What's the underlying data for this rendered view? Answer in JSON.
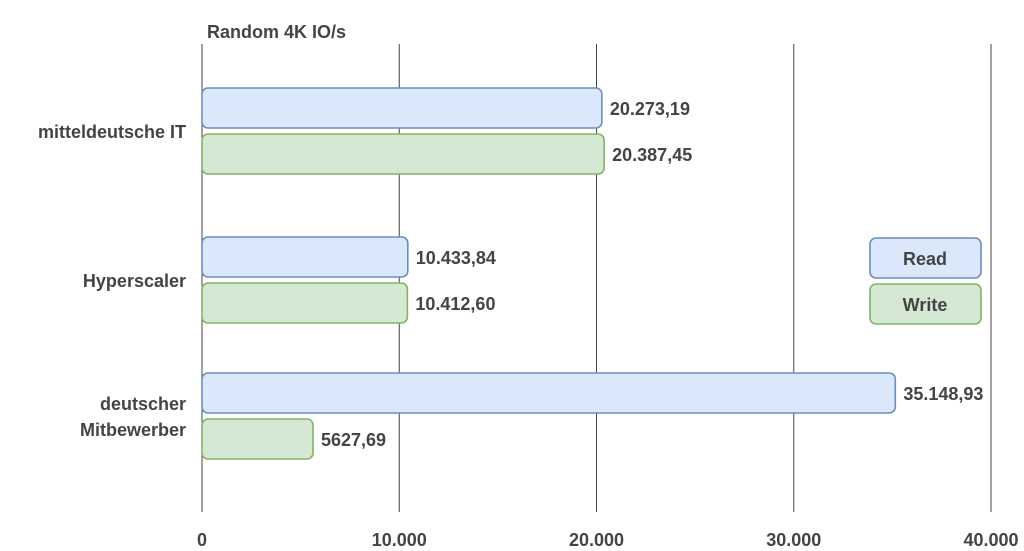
{
  "chart_data": {
    "type": "bar",
    "orientation": "horizontal",
    "title": "Random 4K IO/s",
    "xlabel": "",
    "ylabel": "",
    "xlim": [
      0,
      40000
    ],
    "grid": true,
    "legend_position": "right",
    "x_ticks": [
      "0",
      "10.000",
      "20.000",
      "30.000",
      "40.000"
    ],
    "categories": [
      [
        "mitteldeutsche IT"
      ],
      [
        "Hyperscaler"
      ],
      [
        "deutscher",
        "Mitbewerber"
      ]
    ],
    "series": [
      {
        "name": "Read",
        "color_fill": "#dbe8fb",
        "color_stroke": "#6c8ebf",
        "values": [
          20273.19,
          10433.84,
          35148.93
        ],
        "labels": [
          "20.273,19",
          "10.433,84",
          "35.148,93"
        ]
      },
      {
        "name": "Write",
        "color_fill": "#d5e8d4",
        "color_stroke": "#82b366",
        "values": [
          20387.45,
          10412.6,
          5627.69
        ],
        "labels": [
          "20.387,45",
          "10.412,60",
          "5627,69"
        ]
      }
    ]
  }
}
